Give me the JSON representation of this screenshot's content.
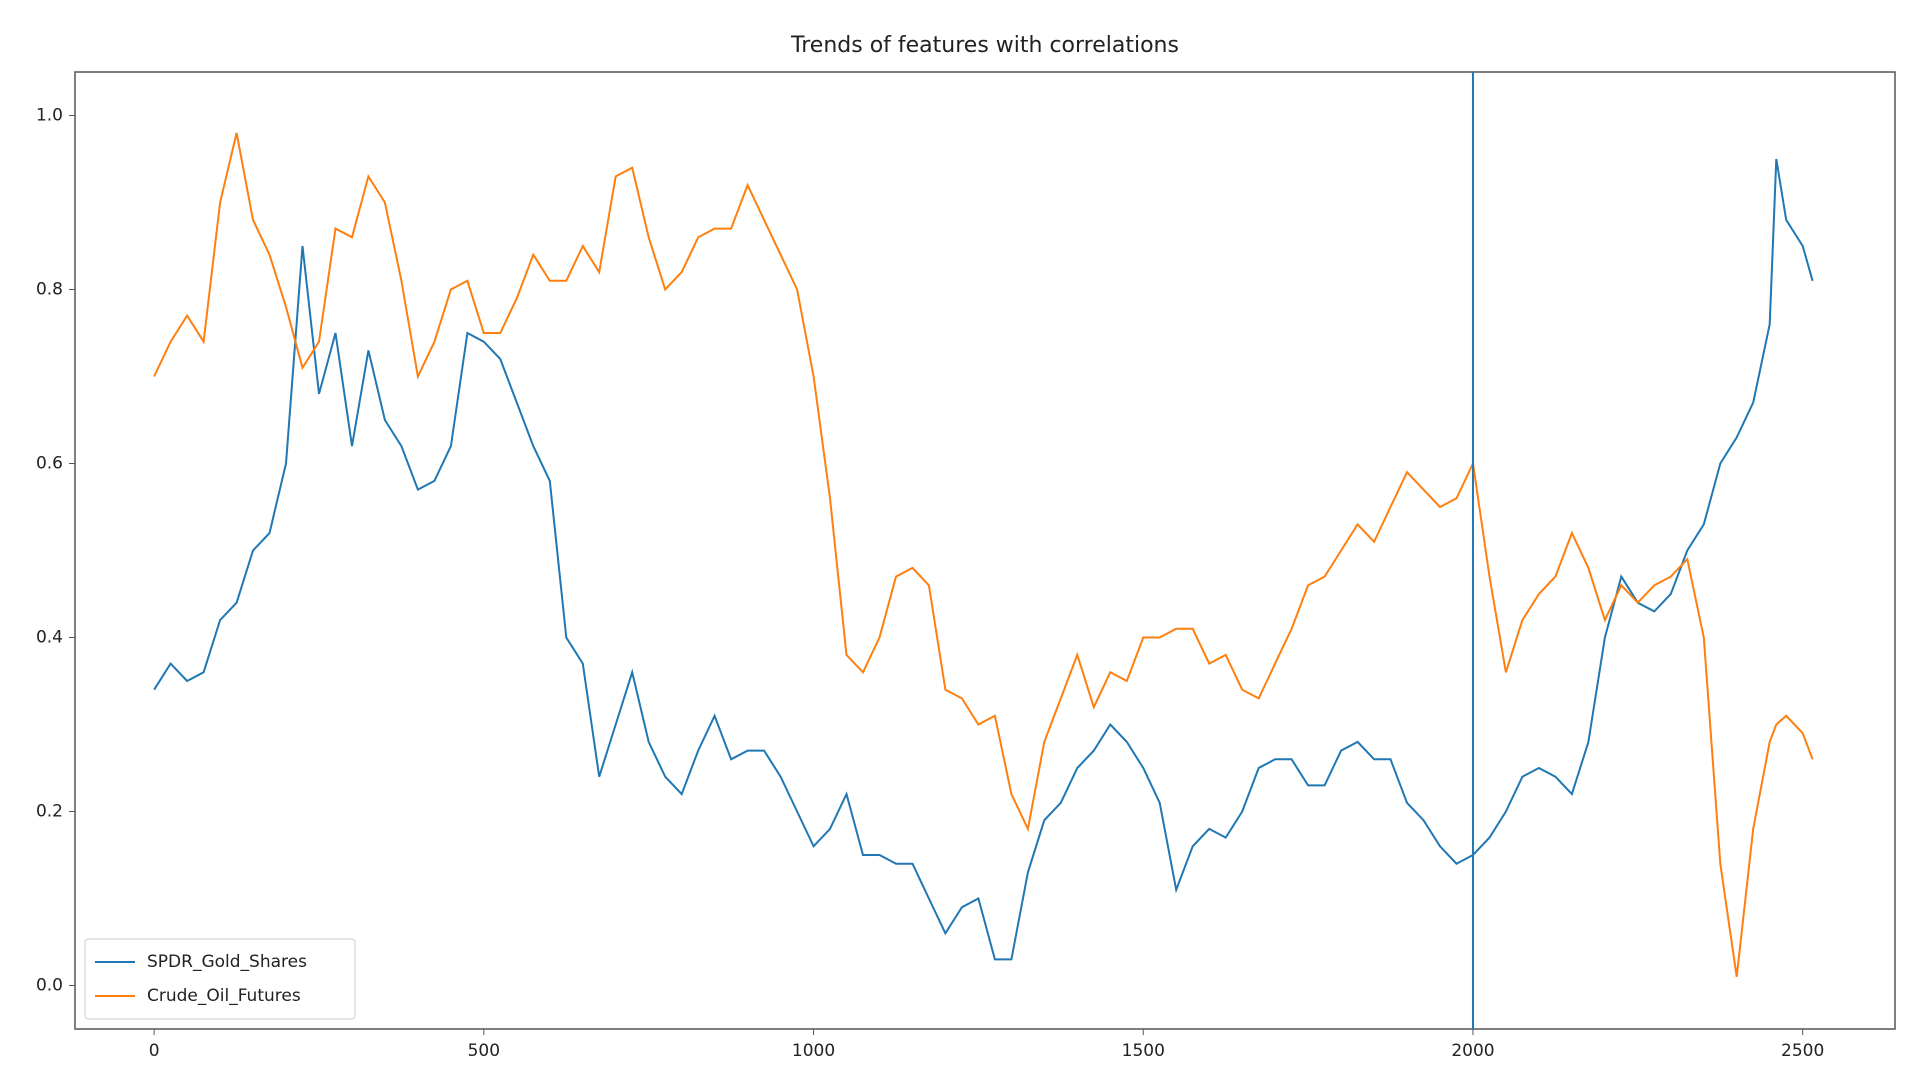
{
  "chart_data": {
    "type": "line",
    "title": "Trends of features with correlations",
    "x": [
      0,
      25,
      50,
      75,
      100,
      125,
      150,
      175,
      200,
      225,
      250,
      275,
      300,
      325,
      350,
      375,
      400,
      425,
      450,
      475,
      500,
      525,
      550,
      575,
      600,
      625,
      650,
      675,
      700,
      725,
      750,
      775,
      800,
      825,
      850,
      875,
      900,
      925,
      950,
      975,
      1000,
      1025,
      1050,
      1075,
      1100,
      1125,
      1150,
      1175,
      1200,
      1225,
      1250,
      1275,
      1300,
      1325,
      1350,
      1375,
      1400,
      1425,
      1450,
      1475,
      1500,
      1525,
      1550,
      1575,
      1600,
      1625,
      1650,
      1675,
      1700,
      1725,
      1750,
      1775,
      1800,
      1825,
      1850,
      1875,
      1900,
      1925,
      1950,
      1975,
      2000,
      2025,
      2050,
      2075,
      2100,
      2125,
      2150,
      2175,
      2200,
      2225,
      2250,
      2275,
      2300,
      2325,
      2350,
      2375,
      2400,
      2425,
      2450,
      2460,
      2475,
      2500,
      2515
    ],
    "series": [
      {
        "name": "SPDR_Gold_Shares",
        "color": "#1f77b4",
        "values": [
          0.34,
          0.37,
          0.35,
          0.36,
          0.42,
          0.44,
          0.5,
          0.52,
          0.6,
          0.85,
          0.68,
          0.75,
          0.62,
          0.73,
          0.65,
          0.62,
          0.57,
          0.58,
          0.62,
          0.75,
          0.74,
          0.72,
          0.67,
          0.62,
          0.58,
          0.4,
          0.37,
          0.24,
          0.3,
          0.36,
          0.28,
          0.24,
          0.22,
          0.27,
          0.31,
          0.26,
          0.27,
          0.27,
          0.24,
          0.2,
          0.16,
          0.18,
          0.22,
          0.15,
          0.15,
          0.14,
          0.14,
          0.1,
          0.06,
          0.09,
          0.1,
          0.03,
          0.03,
          0.13,
          0.19,
          0.21,
          0.25,
          0.27,
          0.3,
          0.28,
          0.25,
          0.21,
          0.11,
          0.16,
          0.18,
          0.17,
          0.2,
          0.25,
          0.26,
          0.26,
          0.23,
          0.23,
          0.27,
          0.28,
          0.26,
          0.26,
          0.21,
          0.19,
          0.16,
          0.14,
          0.15,
          0.17,
          0.2,
          0.24,
          0.25,
          0.24,
          0.22,
          0.28,
          0.4,
          0.47,
          0.44,
          0.43,
          0.45,
          0.5,
          0.53,
          0.6,
          0.63,
          0.67,
          0.76,
          0.95,
          0.88,
          0.85,
          0.81
        ]
      },
      {
        "name": "Crude_Oil_Futures",
        "color": "#ff7f0e",
        "values": [
          0.7,
          0.74,
          0.77,
          0.74,
          0.9,
          0.98,
          0.88,
          0.84,
          0.78,
          0.71,
          0.74,
          0.87,
          0.86,
          0.93,
          0.9,
          0.81,
          0.7,
          0.74,
          0.8,
          0.81,
          0.75,
          0.75,
          0.79,
          0.84,
          0.81,
          0.81,
          0.85,
          0.82,
          0.93,
          0.94,
          0.86,
          0.8,
          0.82,
          0.86,
          0.87,
          0.87,
          0.92,
          0.88,
          0.84,
          0.8,
          0.7,
          0.56,
          0.38,
          0.36,
          0.4,
          0.47,
          0.48,
          0.46,
          0.34,
          0.33,
          0.3,
          0.31,
          0.22,
          0.18,
          0.28,
          0.33,
          0.38,
          0.32,
          0.36,
          0.35,
          0.4,
          0.4,
          0.41,
          0.41,
          0.37,
          0.38,
          0.34,
          0.33,
          0.37,
          0.41,
          0.46,
          0.47,
          0.5,
          0.53,
          0.51,
          0.55,
          0.59,
          0.57,
          0.55,
          0.56,
          0.6,
          0.47,
          0.36,
          0.42,
          0.45,
          0.47,
          0.52,
          0.48,
          0.42,
          0.46,
          0.44,
          0.46,
          0.47,
          0.49,
          0.4,
          0.14,
          0.01,
          0.18,
          0.28,
          0.3,
          0.31,
          0.29,
          0.26
        ]
      }
    ],
    "vline": {
      "value": 2000,
      "color": "#1f77b4"
    },
    "xlim": [
      -120,
      2640
    ],
    "ylim": [
      -0.05,
      1.05
    ],
    "xticks": [
      0,
      500,
      1000,
      1500,
      2000,
      2500
    ],
    "yticks": [
      {
        "value": 0,
        "label": "0.0"
      },
      0.2,
      0.4,
      0.6,
      0.8,
      {
        "value": 1,
        "label": "1.0"
      }
    ],
    "legend": "lower left"
  }
}
